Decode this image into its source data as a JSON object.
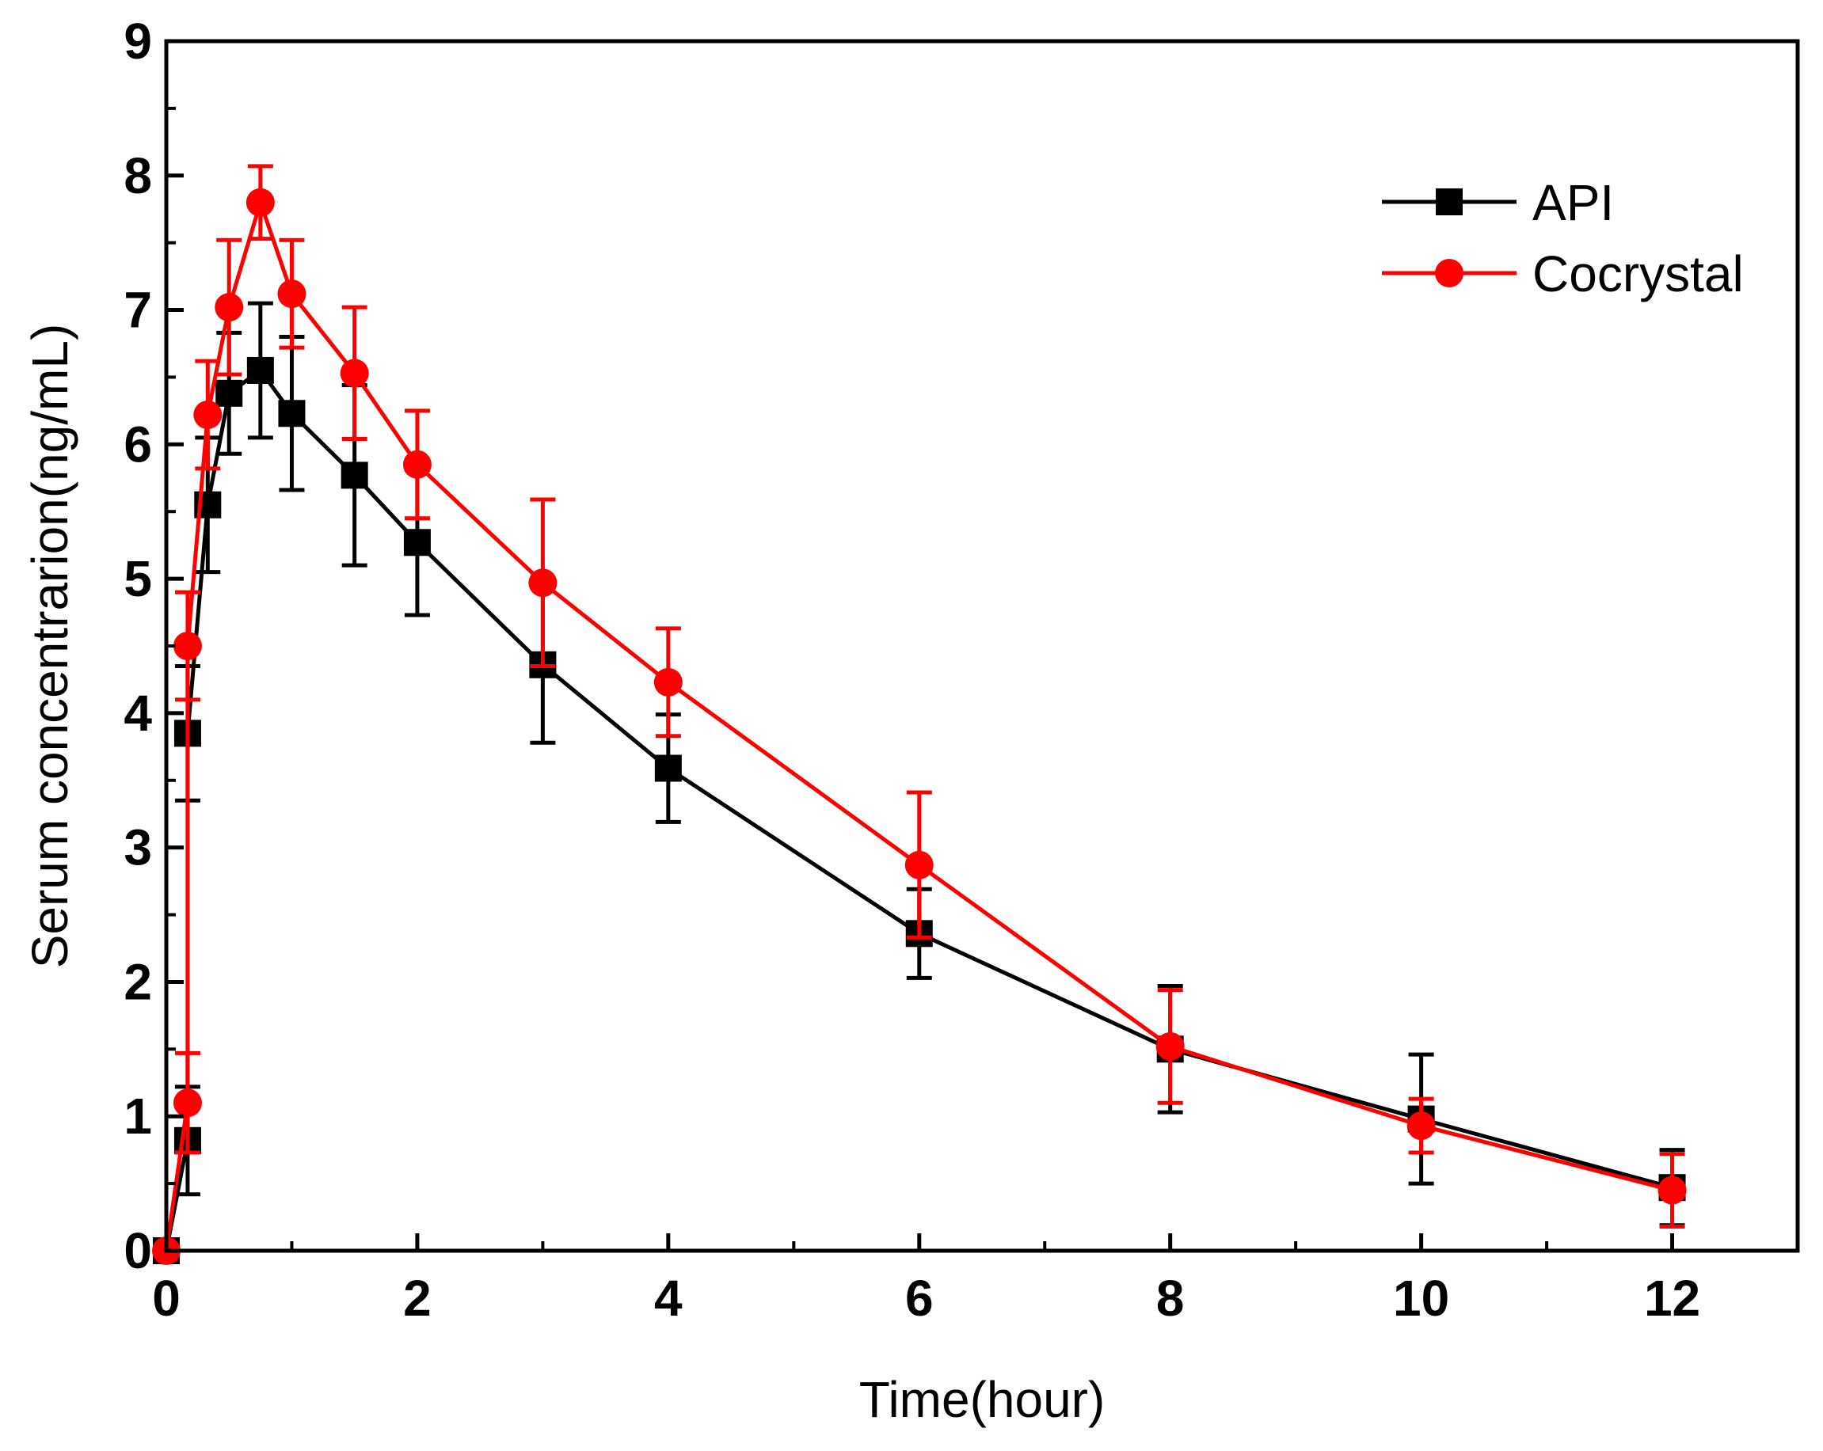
{
  "chart_data": {
    "type": "line",
    "title": "",
    "xlabel": "Time(hour)",
    "ylabel": "Serum concentrarion(ng/mL)",
    "xlim": [
      0,
      13
    ],
    "ylim": [
      0,
      9
    ],
    "xticks": [
      0,
      2,
      4,
      6,
      8,
      10,
      12
    ],
    "yticks": [
      0,
      1,
      2,
      3,
      4,
      5,
      6,
      7,
      8,
      9
    ],
    "grid": false,
    "legend_position": "top-right",
    "series": [
      {
        "name": "API",
        "color": "#000000",
        "marker": "square",
        "x": [
          0,
          0.17,
          0.17,
          0.33,
          0.5,
          0.75,
          1,
          1.5,
          2,
          3,
          4,
          6,
          8,
          10,
          12
        ],
        "y": [
          0,
          0.82,
          3.85,
          5.55,
          6.38,
          6.55,
          6.23,
          5.77,
          5.27,
          4.36,
          3.59,
          2.36,
          1.5,
          0.98,
          0.47
        ],
        "err": [
          0,
          0.4,
          0.5,
          0.5,
          0.45,
          0.5,
          0.57,
          0.67,
          0.54,
          0.58,
          0.4,
          0.33,
          0.47,
          0.48,
          0.28
        ]
      },
      {
        "name": "Cocrystal",
        "color": "#ff0000",
        "marker": "circle",
        "x": [
          0,
          0.17,
          0.17,
          0.33,
          0.5,
          0.75,
          1,
          1.5,
          2,
          3,
          4,
          6,
          8,
          10,
          12
        ],
        "y": [
          0,
          1.1,
          4.5,
          6.22,
          7.02,
          7.8,
          7.12,
          6.53,
          5.85,
          4.97,
          4.23,
          2.87,
          1.52,
          0.93,
          0.45
        ],
        "err": [
          0,
          0.37,
          0.4,
          0.4,
          0.5,
          0.27,
          0.4,
          0.49,
          0.4,
          0.62,
          0.4,
          0.54,
          0.42,
          0.2,
          0.27
        ]
      }
    ]
  }
}
